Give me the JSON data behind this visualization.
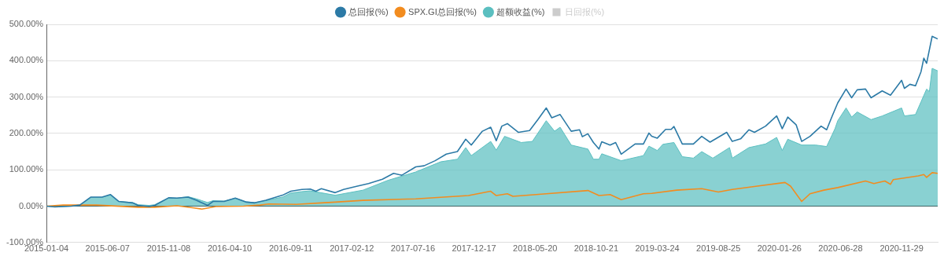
{
  "chart_data": {
    "type": "line",
    "series": [
      {
        "name": "总回报(%)",
        "color": "#2c7aa6",
        "x": [
          "2015-01-04",
          "2015-01-25",
          "2015-03-08",
          "2015-03-29",
          "2015-04-26",
          "2015-05-24",
          "2015-06-14",
          "2015-07-05",
          "2015-08-09",
          "2015-08-23",
          "2015-09-20",
          "2015-10-04",
          "2015-11-08",
          "2015-11-29",
          "2015-12-27",
          "2016-01-17",
          "2016-01-31",
          "2016-02-14",
          "2016-02-28",
          "2016-03-27",
          "2016-04-24",
          "2016-05-22",
          "2016-06-12",
          "2016-07-10",
          "2016-08-21",
          "2016-09-11",
          "2016-10-09",
          "2016-10-30",
          "2016-11-13",
          "2016-11-27",
          "2017-01-01",
          "2017-01-22",
          "2017-02-26",
          "2017-03-26",
          "2017-04-30",
          "2017-05-28",
          "2017-06-18",
          "2017-07-23",
          "2017-08-13",
          "2017-09-10",
          "2017-10-08",
          "2017-11-05",
          "2017-11-26",
          "2017-12-10",
          "2018-01-07",
          "2018-01-28",
          "2018-02-11",
          "2018-02-25",
          "2018-03-11",
          "2018-04-08",
          "2018-05-06",
          "2018-05-27",
          "2018-06-17",
          "2018-07-01",
          "2018-07-22",
          "2018-08-19",
          "2018-09-09",
          "2018-09-16",
          "2018-09-30",
          "2018-10-14",
          "2018-10-28",
          "2018-11-04",
          "2018-11-25",
          "2018-12-09",
          "2018-12-23",
          "2019-01-27",
          "2019-02-17",
          "2019-03-03",
          "2019-03-10",
          "2019-03-24",
          "2019-04-14",
          "2019-04-28",
          "2019-05-05",
          "2019-05-26",
          "2019-06-23",
          "2019-07-14",
          "2019-08-04",
          "2019-09-15",
          "2019-09-29",
          "2019-10-20",
          "2019-11-10",
          "2019-11-24",
          "2019-12-22",
          "2020-01-19",
          "2020-02-02",
          "2020-02-16",
          "2020-03-08",
          "2020-03-22",
          "2020-04-12",
          "2020-04-26",
          "2020-05-10",
          "2020-05-24",
          "2020-06-07",
          "2020-06-21",
          "2020-07-12",
          "2020-07-26",
          "2020-08-09",
          "2020-08-30",
          "2020-09-13",
          "2020-10-11",
          "2020-11-01",
          "2020-11-29",
          "2020-12-06",
          "2020-12-20",
          "2021-01-03",
          "2021-01-17",
          "2021-01-24",
          "2021-01-31",
          "2021-02-14",
          "2021-02-28"
        ],
        "values": [
          0,
          -2,
          0,
          3,
          25,
          25,
          32,
          13,
          9,
          2,
          -1,
          2,
          23,
          22,
          25,
          16,
          9,
          2,
          13,
          13,
          22,
          11,
          9,
          16,
          30,
          41,
          46,
          47,
          41,
          48,
          37,
          46,
          55,
          62,
          74,
          90,
          85,
          108,
          111,
          125,
          143,
          150,
          184,
          168,
          206,
          217,
          180,
          220,
          227,
          203,
          208,
          238,
          270,
          243,
          252,
          206,
          210,
          191,
          199,
          175,
          157,
          177,
          168,
          175,
          143,
          171,
          171,
          201,
          192,
          187,
          211,
          211,
          219,
          171,
          171,
          192,
          176,
          203,
          178,
          185,
          210,
          203,
          220,
          248,
          213,
          245,
          224,
          178,
          192,
          206,
          220,
          210,
          248,
          284,
          322,
          298,
          320,
          322,
          298,
          317,
          305,
          346,
          324,
          335,
          331,
          370,
          407,
          393,
          467,
          460
        ]
      },
      {
        "name": "SPX.GI总回报(%)",
        "color": "#f28c1f",
        "x": [
          "2015-01-04",
          "2015-02-15",
          "2015-05-10",
          "2015-08-23",
          "2015-10-04",
          "2015-11-29",
          "2016-01-10",
          "2016-01-31",
          "2016-03-06",
          "2016-05-15",
          "2016-06-26",
          "2016-07-17",
          "2016-09-25",
          "2016-11-27",
          "2017-01-01",
          "2017-03-12",
          "2017-07-23",
          "2017-12-03",
          "2018-01-28",
          "2018-02-11",
          "2018-03-11",
          "2018-03-25",
          "2018-06-17",
          "2018-09-30",
          "2018-10-28",
          "2018-11-25",
          "2018-12-23",
          "2019-02-17",
          "2019-03-10",
          "2019-05-12",
          "2019-07-14",
          "2019-08-25",
          "2019-09-29",
          "2019-12-01",
          "2020-02-09",
          "2020-02-23",
          "2020-03-22",
          "2020-04-12",
          "2020-05-17",
          "2020-06-21",
          "2020-08-30",
          "2020-09-20",
          "2020-10-18",
          "2020-11-01",
          "2020-11-08",
          "2021-01-10",
          "2021-01-24",
          "2021-01-31",
          "2021-02-14",
          "2021-02-28"
        ],
        "values": [
          0,
          3,
          3,
          -3,
          -3,
          1,
          -5,
          -8,
          -1,
          0,
          3,
          6,
          5,
          9,
          11,
          16,
          20,
          29,
          41,
          29,
          34,
          27,
          34,
          43,
          29,
          32,
          18,
          34,
          35,
          44,
          48,
          39,
          46,
          55,
          65,
          55,
          13,
          34,
          44,
          51,
          69,
          62,
          69,
          60,
          73,
          83,
          87,
          79,
          92,
          90
        ]
      },
      {
        "name": "超额收益(%)",
        "color": "#5bbfc0",
        "type": "area",
        "x": [
          "2015-01-04",
          "2015-01-25",
          "2015-03-08",
          "2015-03-29",
          "2015-04-26",
          "2015-05-24",
          "2015-06-14",
          "2015-07-05",
          "2015-08-09",
          "2015-08-23",
          "2015-09-20",
          "2015-10-04",
          "2015-11-08",
          "2015-11-29",
          "2015-12-27",
          "2016-01-17",
          "2016-01-31",
          "2016-02-14",
          "2016-02-28",
          "2016-03-27",
          "2016-04-24",
          "2016-05-22",
          "2016-06-12",
          "2016-07-10",
          "2016-08-21",
          "2016-09-11",
          "2016-10-09",
          "2016-10-30",
          "2017-01-01",
          "2017-03-12",
          "2017-05-14",
          "2017-07-23",
          "2017-09-24",
          "2017-11-05",
          "2017-11-26",
          "2017-12-10",
          "2018-01-28",
          "2018-02-11",
          "2018-03-04",
          "2018-04-15",
          "2018-05-13",
          "2018-06-17",
          "2018-07-08",
          "2018-07-22",
          "2018-08-19",
          "2018-09-30",
          "2018-10-14",
          "2018-10-28",
          "2018-11-04",
          "2018-12-23",
          "2019-02-17",
          "2019-03-03",
          "2019-03-24",
          "2019-04-07",
          "2019-05-05",
          "2019-05-26",
          "2019-06-23",
          "2019-07-14",
          "2019-08-11",
          "2019-09-22",
          "2019-09-29",
          "2019-11-10",
          "2019-12-22",
          "2020-01-19",
          "2020-02-02",
          "2020-02-16",
          "2020-03-22",
          "2020-04-26",
          "2020-05-24",
          "2020-06-14",
          "2020-06-21",
          "2020-07-12",
          "2020-07-26",
          "2020-08-09",
          "2020-09-13",
          "2020-10-11",
          "2020-11-29",
          "2020-12-06",
          "2021-01-03",
          "2021-01-17",
          "2021-01-31",
          "2021-02-07",
          "2021-02-14",
          "2021-02-28"
        ],
        "values": [
          0,
          -2,
          0,
          3,
          24,
          24,
          31,
          13,
          10,
          4,
          2,
          4,
          23,
          22,
          26,
          20,
          15,
          10,
          15,
          14,
          22,
          12,
          10,
          15,
          25,
          36,
          40,
          42,
          30,
          44,
          71,
          94,
          122,
          129,
          161,
          139,
          178,
          154,
          192,
          175,
          178,
          235,
          206,
          217,
          168,
          157,
          129,
          129,
          144,
          125,
          139,
          165,
          153,
          170,
          175,
          136,
          132,
          150,
          132,
          161,
          132,
          161,
          171,
          189,
          153,
          184,
          168,
          168,
          164,
          213,
          235,
          270,
          245,
          259,
          238,
          248,
          270,
          248,
          252,
          287,
          322,
          315,
          379,
          372
        ]
      },
      {
        "name": "日回报(%)",
        "color": "#cccccc",
        "type": "bar"
      }
    ],
    "xlim": [
      "2015-01-04",
      "2021-02-28"
    ],
    "xticks": [
      "2015-01-04",
      "2015-06-07",
      "2015-11-08",
      "2016-04-10",
      "2016-09-11",
      "2017-02-12",
      "2017-07-16",
      "2017-12-17",
      "2018-05-20",
      "2018-10-21",
      "2019-03-24",
      "2019-08-25",
      "2020-01-26",
      "2020-06-28",
      "2020-11-29"
    ],
    "ylim": [
      -100,
      500
    ],
    "yticks": [
      {
        "value": -100,
        "label": "-100.00%"
      },
      {
        "value": 0,
        "label": "0.00%"
      },
      {
        "value": 100,
        "label": "100.00%"
      },
      {
        "value": 200,
        "label": "200.00%"
      },
      {
        "value": 300,
        "label": "300.00%"
      },
      {
        "value": 400,
        "label": "400.00%"
      },
      {
        "value": 500,
        "label": "500.00%"
      }
    ],
    "grid": "y",
    "legend": "top"
  }
}
